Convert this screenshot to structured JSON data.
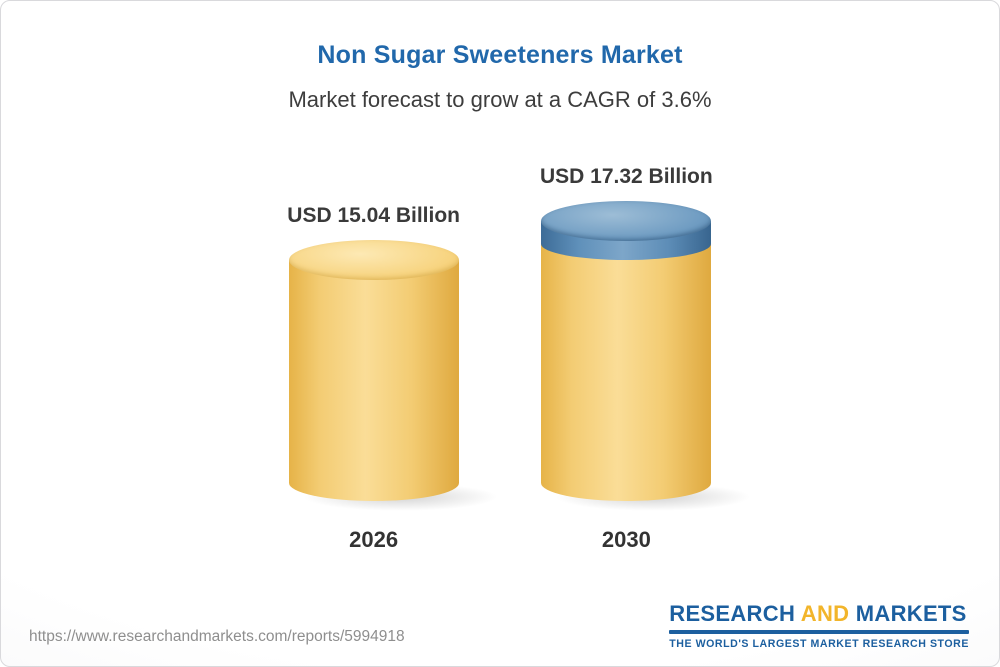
{
  "chart_data": {
    "type": "bar",
    "title": "Non Sugar Sweeteners Market",
    "subtitle": "Market forecast to grow at a CAGR of 3.6%",
    "cagr": "3.6%",
    "categories": [
      "2026",
      "2030"
    ],
    "values": [
      15.04,
      17.32
    ],
    "value_labels": [
      "USD 15.04 Billion",
      "USD 17.32 Billion"
    ],
    "unit": "USD Billion",
    "ylim": [
      0,
      17.32
    ],
    "grid": false,
    "legend": "none",
    "colors": {
      "title_blue": "#2168ab",
      "bar_yellow": "#f3cc73",
      "bar_cap_blue": "#5f90ba",
      "label_text": "#3a3a3a"
    }
  },
  "footer": {
    "url": "https://www.researchandmarkets.com/reports/5994918",
    "logo": {
      "research": "RESEARCH",
      "and": "AND",
      "markets": "MARKETS",
      "tagline": "THE WORLD'S LARGEST MARKET RESEARCH STORE",
      "brand_blue": "#1c5f9f",
      "brand_gold": "#f2b52b"
    }
  }
}
